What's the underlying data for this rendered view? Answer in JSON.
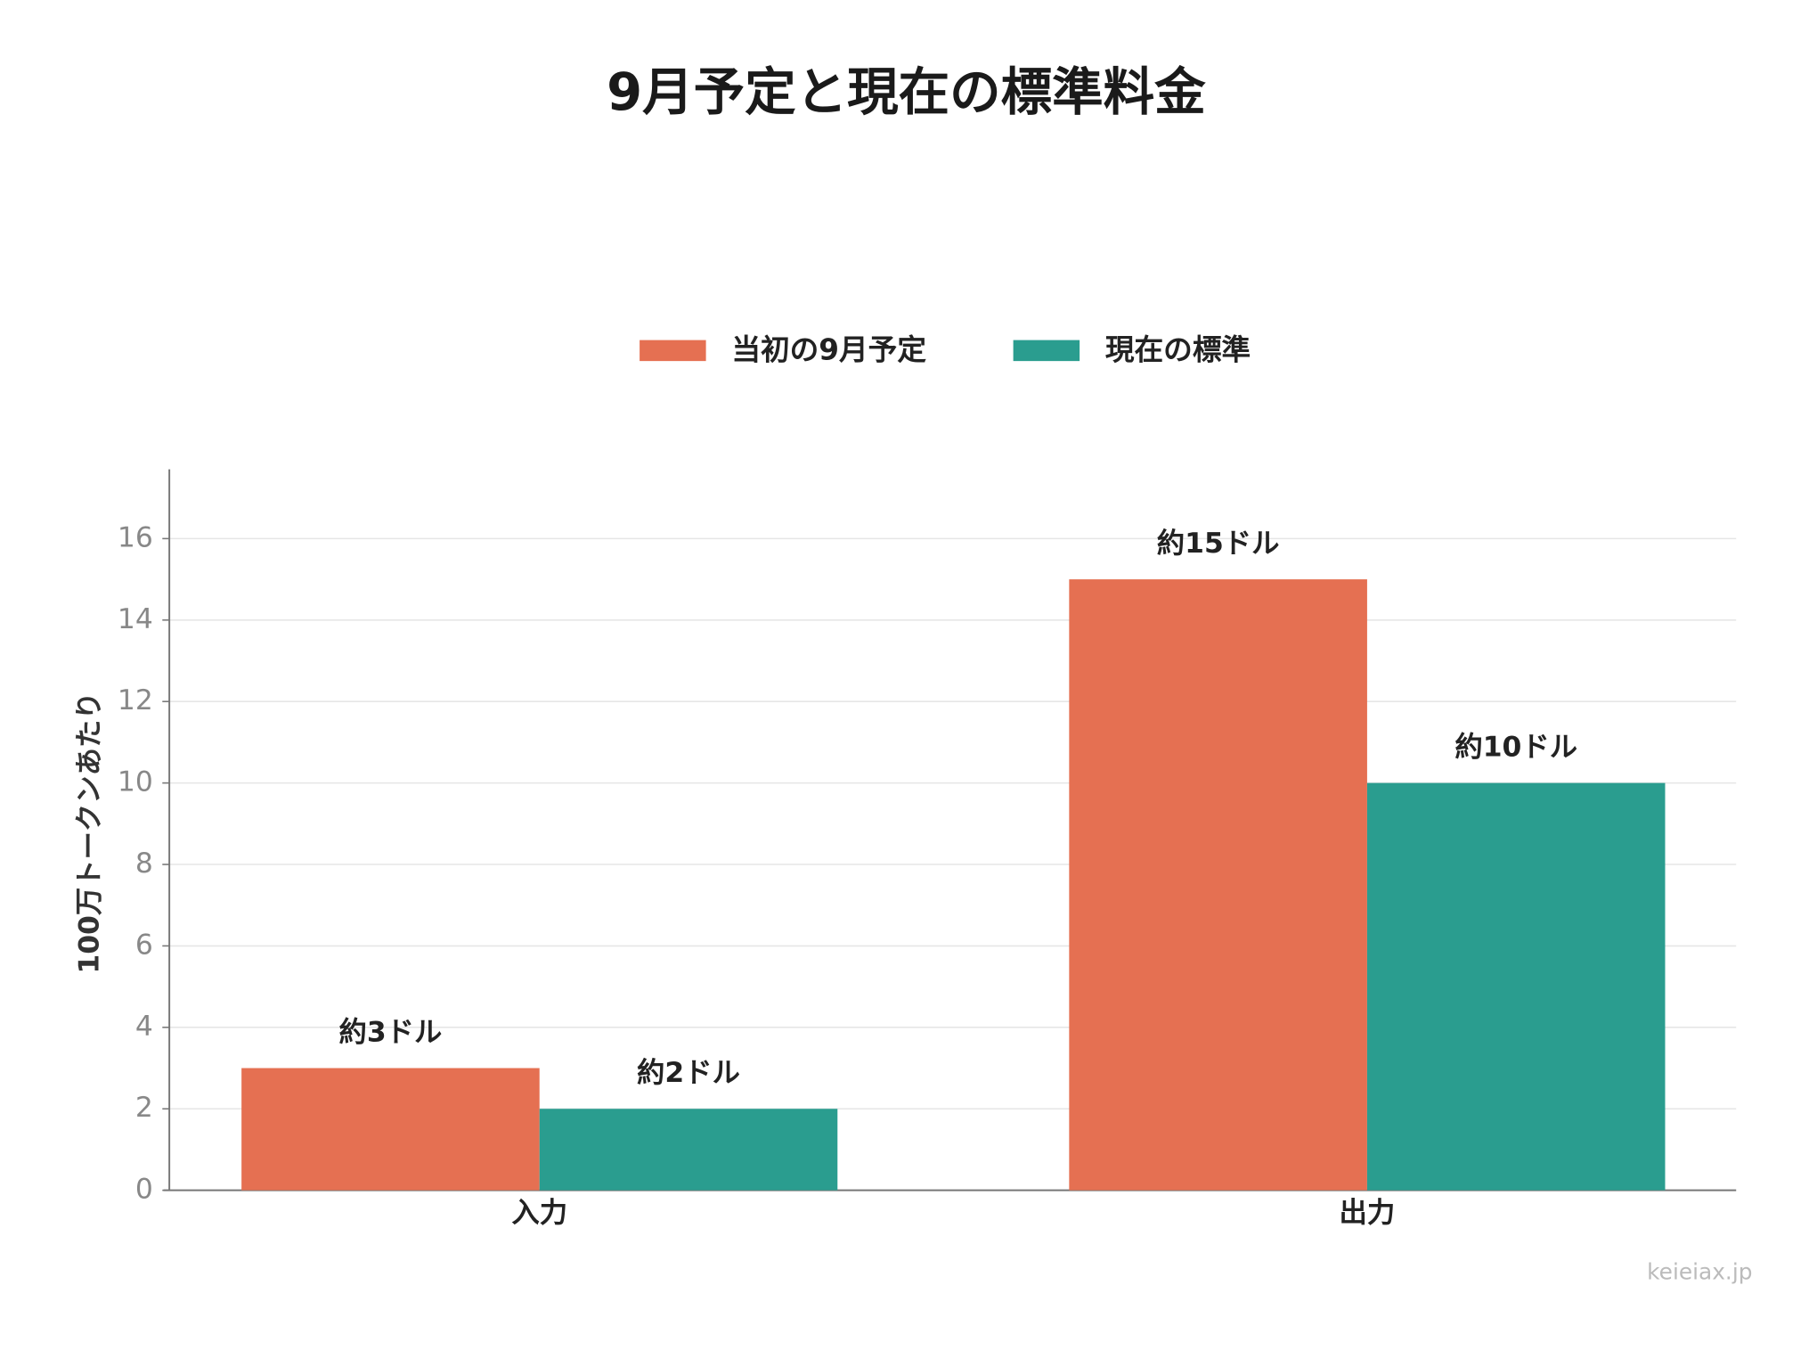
{
  "chart_data": {
    "type": "bar",
    "title": "9月予定と現在の標準料金",
    "y_label": "100万トークンあたり",
    "categories": [
      "入力",
      "出力"
    ],
    "series": [
      {
        "name": "当初の9月予定",
        "color": "#e57052",
        "values": [
          3,
          15
        ],
        "value_labels": [
          "約3ドル",
          "約15ドル"
        ]
      },
      {
        "name": "現在の標準",
        "color": "#2a9d8f",
        "values": [
          2,
          10
        ],
        "value_labels": [
          "約2ドル",
          "約10ドル"
        ]
      }
    ],
    "ylim": [
      0,
      17.7
    ],
    "yticks": [
      0,
      2,
      4,
      6,
      8,
      10,
      12,
      14,
      16
    ],
    "grid": true,
    "legend": "top",
    "source": "keieiax.jp"
  }
}
